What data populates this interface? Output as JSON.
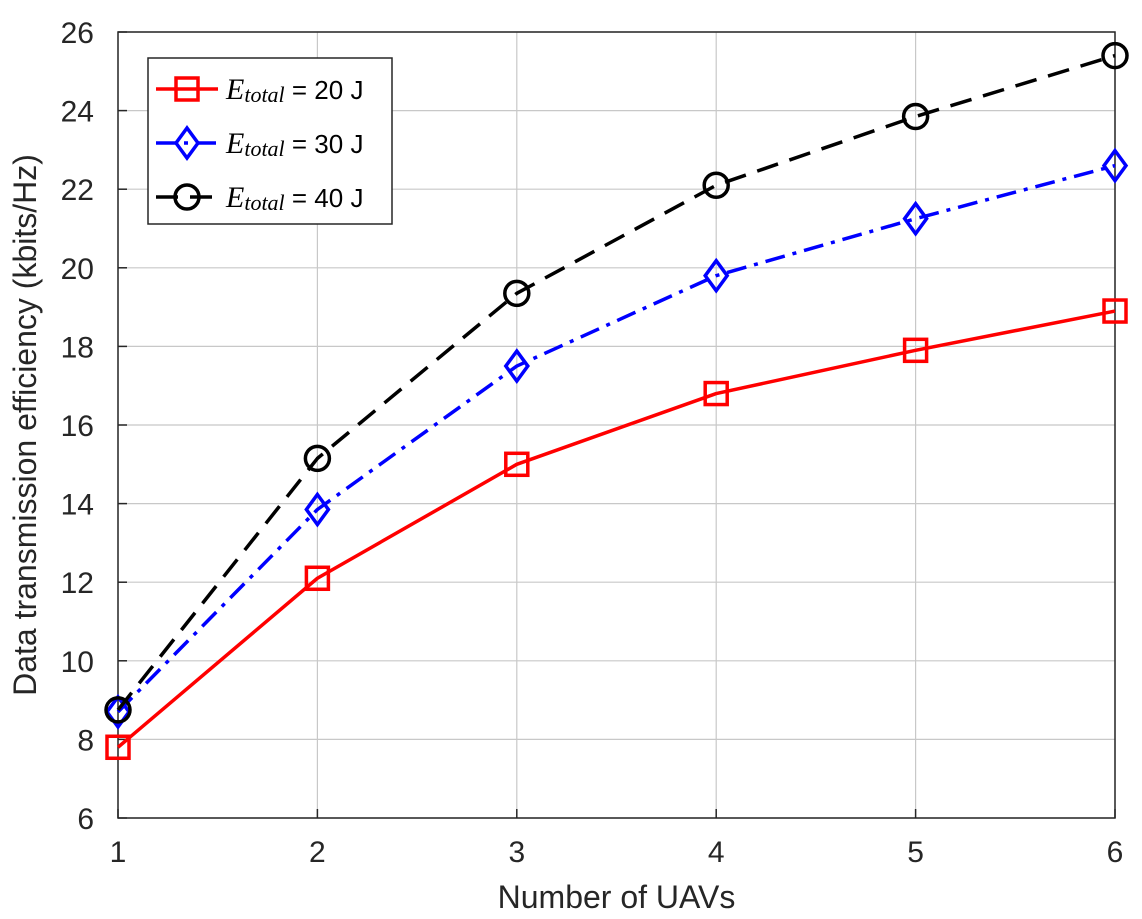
{
  "chart_data": {
    "type": "line",
    "xlabel": "Number of UAVs",
    "ylabel": "Data transmission efficiency (kbits/Hz)",
    "xlim": [
      1,
      6
    ],
    "ylim": [
      6,
      26
    ],
    "xticks": [
      1,
      2,
      3,
      4,
      5,
      6
    ],
    "yticks": [
      6,
      8,
      10,
      12,
      14,
      16,
      18,
      20,
      22,
      24,
      26
    ],
    "grid": true,
    "legend_position": "top-left",
    "x": [
      1,
      2,
      3,
      4,
      5,
      6
    ],
    "series": [
      {
        "name": "E_total = 20 J",
        "symbol": "E",
        "subscript": "total",
        "suffix": " = 20 J",
        "values": [
          7.8,
          12.1,
          15.0,
          16.8,
          17.9,
          18.9
        ],
        "color": "#ff0000",
        "marker": "square",
        "dash": "solid"
      },
      {
        "name": "E_total = 30 J",
        "symbol": "E",
        "subscript": "total",
        "suffix": " = 30 J",
        "values": [
          8.7,
          13.85,
          17.5,
          19.8,
          21.25,
          22.6
        ],
        "color": "#0000ff",
        "marker": "diamond",
        "dash": "dashdot"
      },
      {
        "name": "E_total = 40 J",
        "symbol": "E",
        "subscript": "total",
        "suffix": " = 40 J",
        "values": [
          8.75,
          15.15,
          19.35,
          22.1,
          23.85,
          25.4
        ],
        "color": "#000000",
        "marker": "circle",
        "dash": "dashed"
      }
    ]
  }
}
